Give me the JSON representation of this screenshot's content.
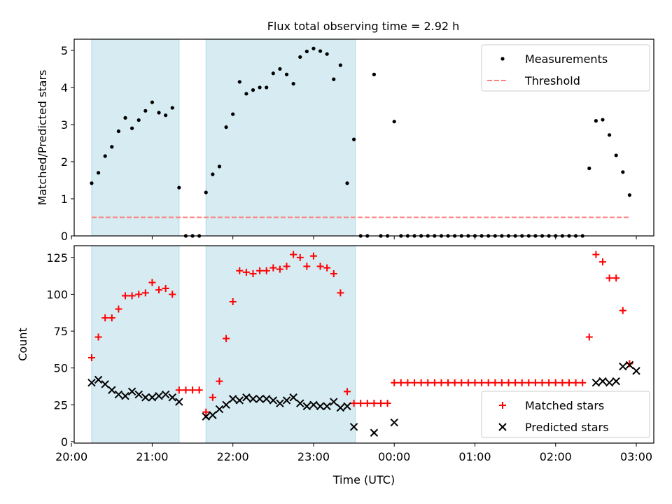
{
  "title": "Flux total observing time = 2.92 h",
  "chart_data": [
    {
      "type": "scatter",
      "ylabel": "Matched/Predicted stars",
      "xlabel": "",
      "x_range": [
        "20:02",
        "03:13"
      ],
      "ylim": [
        0,
        5.3
      ],
      "yticks": [
        "0",
        "1",
        "2",
        "3",
        "4",
        "5"
      ],
      "grid": false,
      "legend_placement": "top-right",
      "threshold": 0.5,
      "shaded_intervals": [
        [
          "20:15",
          "21:20"
        ],
        [
          "21:40",
          "23:31"
        ]
      ],
      "series": [
        {
          "name": "Measurements",
          "color": "#000000",
          "marker": "dot",
          "points": [
            [
              "20:15",
              1.42
            ],
            [
              "20:20",
              1.7
            ],
            [
              "20:25",
              2.15
            ],
            [
              "20:30",
              2.4
            ],
            [
              "20:35",
              2.82
            ],
            [
              "20:40",
              3.18
            ],
            [
              "20:45",
              2.9
            ],
            [
              "20:50",
              3.12
            ],
            [
              "20:55",
              3.37
            ],
            [
              "21:00",
              3.6
            ],
            [
              "21:05",
              3.32
            ],
            [
              "21:10",
              3.25
            ],
            [
              "21:15",
              3.45
            ],
            [
              "21:20",
              1.3
            ],
            [
              "21:25",
              0
            ],
            [
              "21:30",
              0
            ],
            [
              "21:35",
              0
            ],
            [
              "21:40",
              1.17
            ],
            [
              "21:45",
              1.66
            ],
            [
              "21:50",
              1.87
            ],
            [
              "21:55",
              2.93
            ],
            [
              "22:00",
              3.28
            ],
            [
              "22:05",
              4.15
            ],
            [
              "22:10",
              3.83
            ],
            [
              "22:15",
              3.93
            ],
            [
              "22:20",
              4.0
            ],
            [
              "22:25",
              4.0
            ],
            [
              "22:30",
              4.38
            ],
            [
              "22:35",
              4.5
            ],
            [
              "22:40",
              4.35
            ],
            [
              "22:45",
              4.1
            ],
            [
              "22:50",
              4.82
            ],
            [
              "22:55",
              4.97
            ],
            [
              "23:00",
              5.05
            ],
            [
              "23:05",
              4.98
            ],
            [
              "23:10",
              4.9
            ],
            [
              "23:15",
              4.22
            ],
            [
              "23:20",
              4.6
            ],
            [
              "23:25",
              1.42
            ],
            [
              "23:30",
              2.6
            ],
            [
              "23:35",
              0
            ],
            [
              "23:40",
              0
            ],
            [
              "23:45",
              4.35
            ],
            [
              "23:50",
              0
            ],
            [
              "23:55",
              0
            ],
            [
              "00:00",
              3.08
            ],
            [
              "00:05",
              0
            ],
            [
              "00:10",
              0
            ],
            [
              "00:15",
              0
            ],
            [
              "00:20",
              0
            ],
            [
              "00:25",
              0
            ],
            [
              "00:30",
              0
            ],
            [
              "00:35",
              0
            ],
            [
              "00:40",
              0
            ],
            [
              "00:45",
              0
            ],
            [
              "00:50",
              0
            ],
            [
              "00:55",
              0
            ],
            [
              "01:00",
              0
            ],
            [
              "01:05",
              0
            ],
            [
              "01:10",
              0
            ],
            [
              "01:15",
              0
            ],
            [
              "01:20",
              0
            ],
            [
              "01:25",
              0
            ],
            [
              "01:30",
              0
            ],
            [
              "01:35",
              0
            ],
            [
              "01:40",
              0
            ],
            [
              "01:45",
              0
            ],
            [
              "01:50",
              0
            ],
            [
              "01:55",
              0
            ],
            [
              "02:00",
              0
            ],
            [
              "02:05",
              0
            ],
            [
              "02:10",
              0
            ],
            [
              "02:15",
              0
            ],
            [
              "02:20",
              0
            ],
            [
              "02:25",
              1.82
            ],
            [
              "02:30",
              3.1
            ],
            [
              "02:35",
              3.13
            ],
            [
              "02:40",
              2.72
            ],
            [
              "02:45",
              2.17
            ],
            [
              "02:50",
              1.72
            ],
            [
              "02:55",
              1.1
            ]
          ]
        },
        {
          "name": "Threshold",
          "color": "#ff7f7f",
          "line_style": "dashed",
          "points": [
            [
              "20:15",
              0.5
            ],
            [
              "02:55",
              0.5
            ]
          ]
        }
      ]
    },
    {
      "type": "scatter",
      "ylabel": "Count",
      "xlabel": "Time (UTC)",
      "x_range": [
        "20:02",
        "03:13"
      ],
      "ylim": [
        -1,
        133
      ],
      "yticks": [
        "0",
        "25",
        "50",
        "75",
        "100",
        "125"
      ],
      "xticks": [
        "20:00",
        "21:00",
        "22:00",
        "23:00",
        "00:00",
        "01:00",
        "02:00",
        "03:00"
      ],
      "grid": false,
      "legend_placement": "bottom-right",
      "shaded_intervals": [
        [
          "20:15",
          "21:20"
        ],
        [
          "21:40",
          "23:31"
        ]
      ],
      "series": [
        {
          "name": "Matched stars",
          "color": "#ff0000",
          "marker": "plus",
          "points": [
            [
              "20:15",
              57
            ],
            [
              "20:20",
              71
            ],
            [
              "20:25",
              84
            ],
            [
              "20:30",
              84
            ],
            [
              "20:35",
              90
            ],
            [
              "20:40",
              99
            ],
            [
              "20:45",
              99
            ],
            [
              "20:50",
              100
            ],
            [
              "20:55",
              101
            ],
            [
              "21:00",
              108
            ],
            [
              "21:05",
              103
            ],
            [
              "21:10",
              104
            ],
            [
              "21:15",
              100
            ],
            [
              "21:20",
              35
            ],
            [
              "21:25",
              35
            ],
            [
              "21:30",
              35
            ],
            [
              "21:35",
              35
            ],
            [
              "21:40",
              20
            ],
            [
              "21:45",
              30
            ],
            [
              "21:50",
              41
            ],
            [
              "21:55",
              70
            ],
            [
              "22:00",
              95
            ],
            [
              "22:05",
              116
            ],
            [
              "22:10",
              115
            ],
            [
              "22:15",
              114
            ],
            [
              "22:20",
              116
            ],
            [
              "22:25",
              116
            ],
            [
              "22:30",
              118
            ],
            [
              "22:35",
              117
            ],
            [
              "22:40",
              119
            ],
            [
              "22:45",
              127
            ],
            [
              "22:50",
              125
            ],
            [
              "22:55",
              119
            ],
            [
              "23:00",
              126
            ],
            [
              "23:05",
              119
            ],
            [
              "23:10",
              118
            ],
            [
              "23:15",
              114
            ],
            [
              "23:20",
              101
            ],
            [
              "23:25",
              34
            ],
            [
              "23:30",
              26
            ],
            [
              "23:35",
              26
            ],
            [
              "23:40",
              26
            ],
            [
              "23:45",
              26
            ],
            [
              "23:50",
              26
            ],
            [
              "23:55",
              26
            ],
            [
              "00:00",
              40
            ],
            [
              "00:05",
              40
            ],
            [
              "00:10",
              40
            ],
            [
              "00:15",
              40
            ],
            [
              "00:20",
              40
            ],
            [
              "00:25",
              40
            ],
            [
              "00:30",
              40
            ],
            [
              "00:35",
              40
            ],
            [
              "00:40",
              40
            ],
            [
              "00:45",
              40
            ],
            [
              "00:50",
              40
            ],
            [
              "00:55",
              40
            ],
            [
              "01:00",
              40
            ],
            [
              "01:05",
              40
            ],
            [
              "01:10",
              40
            ],
            [
              "01:15",
              40
            ],
            [
              "01:20",
              40
            ],
            [
              "01:25",
              40
            ],
            [
              "01:30",
              40
            ],
            [
              "01:35",
              40
            ],
            [
              "01:40",
              40
            ],
            [
              "01:45",
              40
            ],
            [
              "01:50",
              40
            ],
            [
              "01:55",
              40
            ],
            [
              "02:00",
              40
            ],
            [
              "02:05",
              40
            ],
            [
              "02:10",
              40
            ],
            [
              "02:15",
              40
            ],
            [
              "02:20",
              40
            ],
            [
              "02:25",
              71
            ],
            [
              "02:30",
              127
            ],
            [
              "02:35",
              122
            ],
            [
              "02:40",
              111
            ],
            [
              "02:45",
              111
            ],
            [
              "02:50",
              89
            ],
            [
              "02:55",
              53
            ]
          ]
        },
        {
          "name": "Predicted stars",
          "color": "#000000",
          "marker": "x",
          "points": [
            [
              "20:15",
              40
            ],
            [
              "20:20",
              42
            ],
            [
              "20:25",
              39
            ],
            [
              "20:30",
              35
            ],
            [
              "20:35",
              32
            ],
            [
              "20:40",
              31
            ],
            [
              "20:45",
              34
            ],
            [
              "20:50",
              32
            ],
            [
              "20:55",
              30
            ],
            [
              "21:00",
              30
            ],
            [
              "21:05",
              31
            ],
            [
              "21:10",
              32
            ],
            [
              "21:15",
              30
            ],
            [
              "21:20",
              27
            ],
            [
              "21:40",
              17
            ],
            [
              "21:45",
              18
            ],
            [
              "21:50",
              22
            ],
            [
              "21:55",
              25
            ],
            [
              "22:00",
              29
            ],
            [
              "22:05",
              28
            ],
            [
              "22:10",
              30
            ],
            [
              "22:15",
              29
            ],
            [
              "22:20",
              29
            ],
            [
              "22:25",
              29
            ],
            [
              "22:30",
              28
            ],
            [
              "22:35",
              26
            ],
            [
              "22:40",
              28
            ],
            [
              "22:45",
              30
            ],
            [
              "22:50",
              26
            ],
            [
              "22:55",
              24
            ],
            [
              "23:00",
              25
            ],
            [
              "23:05",
              24
            ],
            [
              "23:10",
              24
            ],
            [
              "23:15",
              27
            ],
            [
              "23:20",
              23
            ],
            [
              "23:25",
              24
            ],
            [
              "23:30",
              10
            ],
            [
              "23:45",
              6
            ],
            [
              "00:00",
              13
            ],
            [
              "02:30",
              40
            ],
            [
              "02:35",
              41
            ],
            [
              "02:40",
              40
            ],
            [
              "02:45",
              41
            ],
            [
              "02:50",
              51
            ],
            [
              "02:55",
              52
            ],
            [
              "03:00",
              48
            ]
          ]
        }
      ]
    }
  ]
}
